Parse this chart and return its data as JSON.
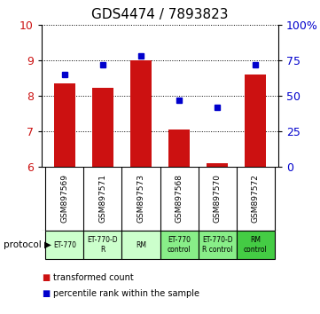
{
  "title": "GDS4474 / 7893823",
  "samples": [
    "GSM897569",
    "GSM897571",
    "GSM897573",
    "GSM897568",
    "GSM897570",
    "GSM897572"
  ],
  "transformed_counts": [
    8.35,
    8.22,
    9.0,
    7.05,
    6.1,
    8.6
  ],
  "percentile_ranks": [
    65,
    72,
    78,
    47,
    42,
    72
  ],
  "protocols": [
    "ET-770",
    "ET-770-D\nR",
    "RM",
    "ET-770\ncontrol",
    "ET-770-D\nR control",
    "RM\ncontrol"
  ],
  "protocol_colors": [
    "#ccffcc",
    "#ccffcc",
    "#ccffcc",
    "#88ee88",
    "#88ee88",
    "#44cc44"
  ],
  "bar_color": "#cc1111",
  "dot_color": "#0000cc",
  "ylim_left": [
    6,
    10
  ],
  "ylim_right": [
    0,
    100
  ],
  "yticks_left": [
    6,
    7,
    8,
    9,
    10
  ],
  "yticks_right": [
    0,
    25,
    50,
    75,
    100
  ],
  "ytick_labels_right": [
    "0",
    "25",
    "50",
    "75",
    "100%"
  ],
  "legend_bar_label": "transformed count",
  "legend_dot_label": "percentile rank within the sample",
  "protocol_label": "protocol",
  "sample_bg_color": "#cccccc",
  "bar_width": 0.55
}
